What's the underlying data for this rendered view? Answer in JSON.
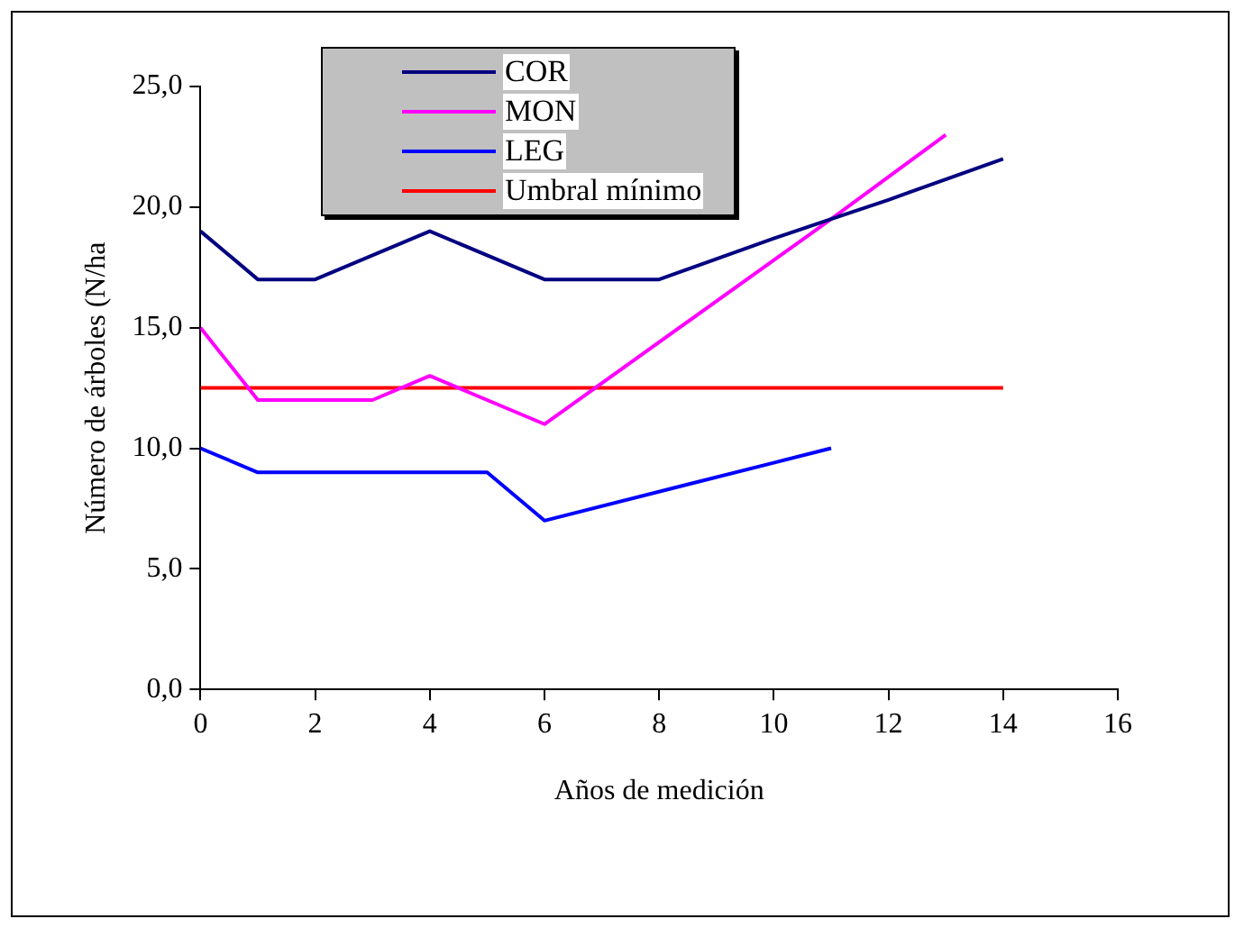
{
  "chart_data": {
    "type": "line",
    "xlabel": "Años de medición",
    "ylabel": "Número de árboles (N/ha",
    "xlim": [
      0,
      16
    ],
    "xticks": [
      0,
      2,
      4,
      6,
      8,
      10,
      12,
      14,
      16
    ],
    "ylim": [
      0,
      25
    ],
    "yticks": [
      {
        "value": 0,
        "label": "0,0"
      },
      {
        "value": 5,
        "label": "5,0"
      },
      {
        "value": 10,
        "label": "10,0"
      },
      {
        "value": 15,
        "label": "15,0"
      },
      {
        "value": 20,
        "label": "20,0"
      },
      {
        "value": 25,
        "label": "25,0"
      }
    ],
    "grid": false,
    "legend": "top",
    "marker": "none",
    "line_style": "solid",
    "series": [
      {
        "name": "COR",
        "color": "#000080",
        "x": [
          0,
          1,
          2,
          4,
          6,
          8,
          10,
          11,
          12,
          14
        ],
        "values": [
          19,
          17,
          17,
          19,
          17,
          17,
          18.7,
          19.5,
          20.3,
          22
        ]
      },
      {
        "name": "MON",
        "color": "#ff00ff",
        "x": [
          0,
          1,
          3,
          4,
          6,
          11,
          13
        ],
        "values": [
          15,
          12,
          12,
          13,
          11,
          19.5,
          23
        ]
      },
      {
        "name": "LEG",
        "color": "#0000ff",
        "x": [
          0,
          1,
          5,
          6,
          10,
          11
        ],
        "values": [
          10,
          9,
          9,
          7,
          9.4,
          10
        ]
      },
      {
        "name": "Umbral mínimo",
        "color": "#ff0000",
        "x": [
          0,
          14
        ],
        "values": [
          12.5,
          12.5
        ]
      }
    ]
  }
}
